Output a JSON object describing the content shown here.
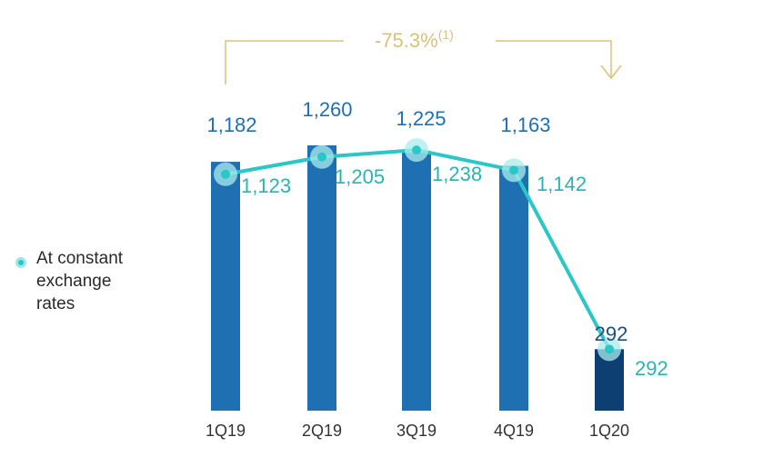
{
  "chart_data": {
    "type": "bar",
    "categories": [
      "1Q19",
      "2Q19",
      "3Q19",
      "4Q19",
      "1Q20"
    ],
    "series": [
      {
        "values": [
          1182,
          1260,
          1225,
          1163,
          292
        ],
        "labels": [
          "1,182",
          "1,260",
          "1,225",
          "1,163",
          "292"
        ]
      },
      {
        "name": "At constant exchange rates",
        "type": "line",
        "values": [
          1123,
          1205,
          1238,
          1142,
          292
        ],
        "labels": [
          "1,123",
          "1,205",
          "1,238",
          "1,142",
          "292"
        ]
      }
    ],
    "annotation": {
      "text": "-75.3%",
      "footnote": "(1)"
    },
    "colors": {
      "bar": "#1f6fb3",
      "bar_last": "#0d3f73",
      "line": "#2bc6c6",
      "annotation": "#d8c27a"
    }
  },
  "legend": {
    "lines": [
      "At constant",
      "exchange",
      "rates"
    ]
  }
}
